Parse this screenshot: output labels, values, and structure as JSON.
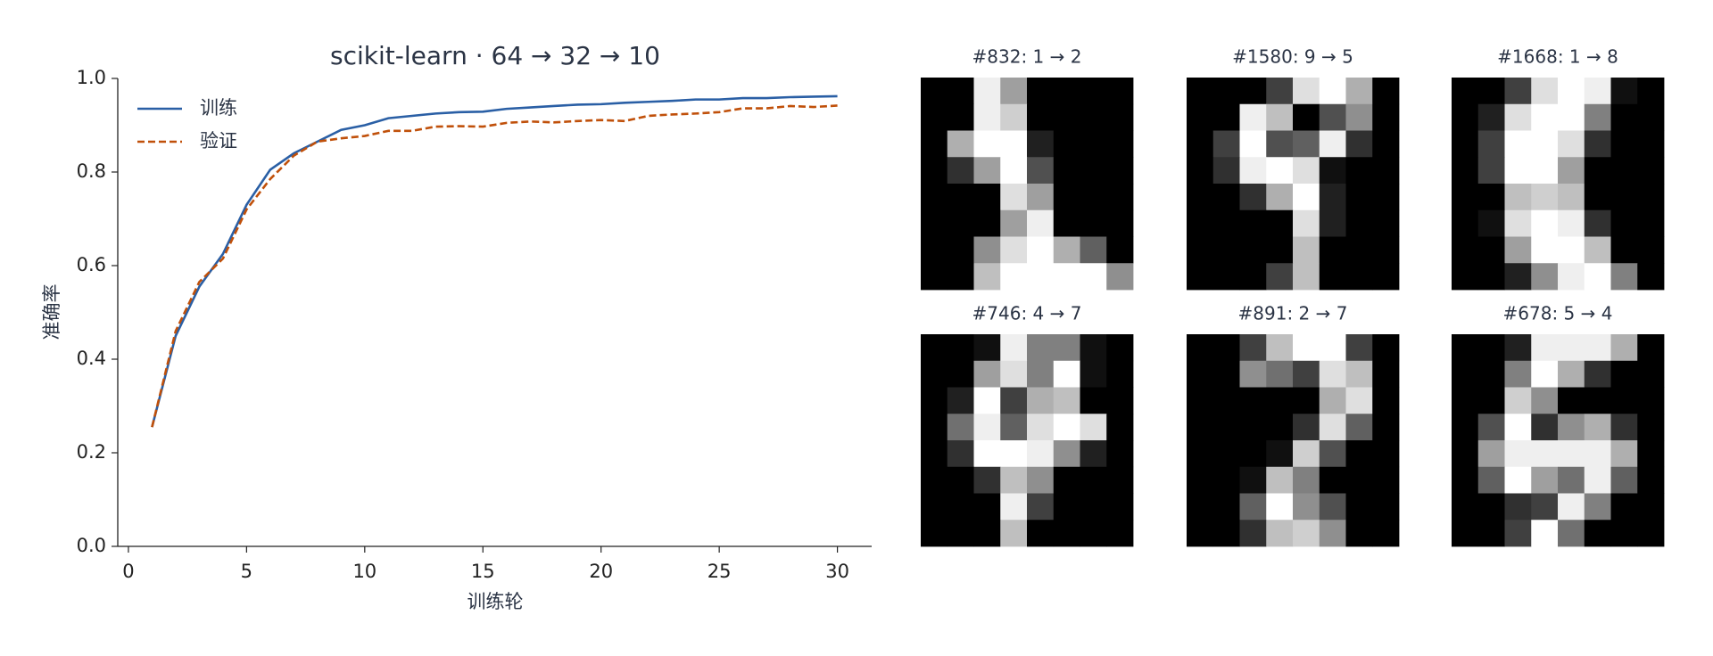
{
  "chart_data": [
    {
      "type": "line",
      "title": "scikit-learn · 64 → 32 → 10",
      "xlabel": "训练轮",
      "ylabel": "准确率",
      "x": [
        1,
        2,
        3,
        4,
        5,
        6,
        7,
        8,
        9,
        10,
        11,
        12,
        13,
        14,
        15,
        16,
        17,
        18,
        19,
        20,
        21,
        22,
        23,
        24,
        25,
        26,
        27,
        28,
        29,
        30
      ],
      "series": [
        {
          "name": "训练",
          "color": "#2a5fa5",
          "dash": false,
          "values": [
            0.255,
            0.45,
            0.555,
            0.625,
            0.73,
            0.805,
            0.84,
            0.865,
            0.89,
            0.9,
            0.915,
            0.92,
            0.925,
            0.928,
            0.929,
            0.935,
            0.938,
            0.941,
            0.944,
            0.945,
            0.948,
            0.95,
            0.952,
            0.955,
            0.955,
            0.958,
            0.958,
            0.96,
            0.961,
            0.962
          ]
        },
        {
          "name": "验证",
          "color": "#c0500a",
          "dash": true,
          "values": [
            0.255,
            0.46,
            0.565,
            0.615,
            0.72,
            0.785,
            0.835,
            0.865,
            0.872,
            0.877,
            0.888,
            0.888,
            0.897,
            0.898,
            0.897,
            0.905,
            0.908,
            0.906,
            0.909,
            0.911,
            0.909,
            0.92,
            0.923,
            0.925,
            0.928,
            0.936,
            0.936,
            0.941,
            0.939,
            0.942
          ]
        }
      ],
      "xlim": [
        -0.45,
        31.45
      ],
      "ylim": [
        0,
        1
      ],
      "xticks": [
        0,
        5,
        10,
        15,
        20,
        25,
        30
      ],
      "yticks": [
        {
          "value": 0,
          "label": "0.0"
        },
        0.2,
        0.4,
        0.6,
        0.8,
        {
          "value": 1,
          "label": "1.0"
        }
      ],
      "legend": "upper left",
      "grid": false
    },
    {
      "type": "heatmap",
      "title": "#832: 1 → 2",
      "vmin": 0,
      "vmax": 16,
      "values": [
        [
          0,
          0,
          15,
          10,
          0,
          0,
          0,
          0
        ],
        [
          0,
          0,
          15,
          13,
          0,
          0,
          0,
          0
        ],
        [
          0,
          11,
          16,
          16,
          2,
          0,
          0,
          0
        ],
        [
          0,
          3,
          10,
          16,
          5,
          0,
          0,
          0
        ],
        [
          0,
          0,
          0,
          14,
          10,
          0,
          0,
          0
        ],
        [
          0,
          0,
          0,
          10,
          15,
          0,
          0,
          0
        ],
        [
          0,
          0,
          9,
          14,
          16,
          11,
          6,
          0
        ],
        [
          0,
          0,
          12,
          16,
          16,
          16,
          16,
          9
        ]
      ]
    },
    {
      "type": "heatmap",
      "title": "#1580: 9 → 5",
      "vmin": 0,
      "vmax": 16,
      "values": [
        [
          0,
          0,
          0,
          4,
          14,
          16,
          11,
          0
        ],
        [
          0,
          0,
          15,
          12,
          0,
          5,
          9,
          0
        ],
        [
          0,
          4,
          16,
          5,
          6,
          15,
          3,
          0
        ],
        [
          0,
          3,
          15,
          16,
          14,
          1,
          0,
          0
        ],
        [
          0,
          0,
          3,
          11,
          16,
          2,
          0,
          0
        ],
        [
          0,
          0,
          0,
          0,
          14,
          2,
          0,
          0
        ],
        [
          0,
          0,
          0,
          0,
          12,
          0,
          0,
          0
        ],
        [
          0,
          0,
          0,
          4,
          12,
          0,
          0,
          0
        ]
      ]
    },
    {
      "type": "heatmap",
      "title": "#1668: 1 → 8",
      "vmin": 0,
      "vmax": 16,
      "values": [
        [
          0,
          0,
          4,
          14,
          16,
          15,
          1,
          0
        ],
        [
          0,
          2,
          14,
          16,
          16,
          8,
          0,
          0
        ],
        [
          0,
          4,
          16,
          16,
          14,
          3,
          0,
          0
        ],
        [
          0,
          4,
          16,
          16,
          10,
          0,
          0,
          0
        ],
        [
          0,
          0,
          12,
          13,
          12,
          0,
          0,
          0
        ],
        [
          0,
          1,
          14,
          16,
          15,
          3,
          0,
          0
        ],
        [
          0,
          0,
          10,
          16,
          16,
          12,
          0,
          0
        ],
        [
          0,
          0,
          2,
          9,
          15,
          16,
          8,
          0
        ]
      ]
    },
    {
      "type": "heatmap",
      "title": "#746: 4 → 7",
      "vmin": 0,
      "vmax": 16,
      "values": [
        [
          0,
          0,
          1,
          15,
          8,
          8,
          1,
          0
        ],
        [
          0,
          0,
          10,
          14,
          8,
          16,
          1,
          0
        ],
        [
          0,
          2,
          16,
          4,
          11,
          12,
          0,
          0
        ],
        [
          0,
          7,
          15,
          6,
          14,
          16,
          14,
          0
        ],
        [
          0,
          3,
          16,
          16,
          15,
          9,
          2,
          0
        ],
        [
          0,
          0,
          3,
          12,
          9,
          0,
          0,
          0
        ],
        [
          0,
          0,
          0,
          15,
          4,
          0,
          0,
          0
        ],
        [
          0,
          0,
          0,
          12,
          0,
          0,
          0,
          0
        ]
      ]
    },
    {
      "type": "heatmap",
      "title": "#891: 2 → 7",
      "vmin": 0,
      "vmax": 16,
      "values": [
        [
          0,
          0,
          4,
          12,
          16,
          16,
          4,
          0
        ],
        [
          0,
          0,
          9,
          7,
          4,
          14,
          12,
          0
        ],
        [
          0,
          0,
          0,
          0,
          0,
          11,
          14,
          0
        ],
        [
          0,
          0,
          0,
          0,
          3,
          14,
          6,
          0
        ],
        [
          0,
          0,
          0,
          1,
          13,
          5,
          0,
          0
        ],
        [
          0,
          0,
          1,
          12,
          8,
          0,
          0,
          0
        ],
        [
          0,
          0,
          6,
          16,
          9,
          5,
          0,
          0
        ],
        [
          0,
          0,
          3,
          12,
          13,
          9,
          0,
          0
        ]
      ]
    },
    {
      "type": "heatmap",
      "title": "#678: 5 → 4",
      "vmin": 0,
      "vmax": 16,
      "values": [
        [
          0,
          0,
          2,
          15,
          15,
          15,
          11,
          0
        ],
        [
          0,
          0,
          8,
          16,
          11,
          3,
          0,
          0
        ],
        [
          0,
          0,
          13,
          9,
          0,
          0,
          0,
          0
        ],
        [
          0,
          5,
          16,
          3,
          9,
          11,
          3,
          0
        ],
        [
          0,
          10,
          15,
          15,
          15,
          15,
          11,
          0
        ],
        [
          0,
          6,
          16,
          10,
          7,
          15,
          6,
          0
        ],
        [
          0,
          0,
          3,
          4,
          15,
          8,
          0,
          0
        ],
        [
          0,
          0,
          4,
          16,
          7,
          0,
          0,
          0
        ]
      ]
    }
  ]
}
